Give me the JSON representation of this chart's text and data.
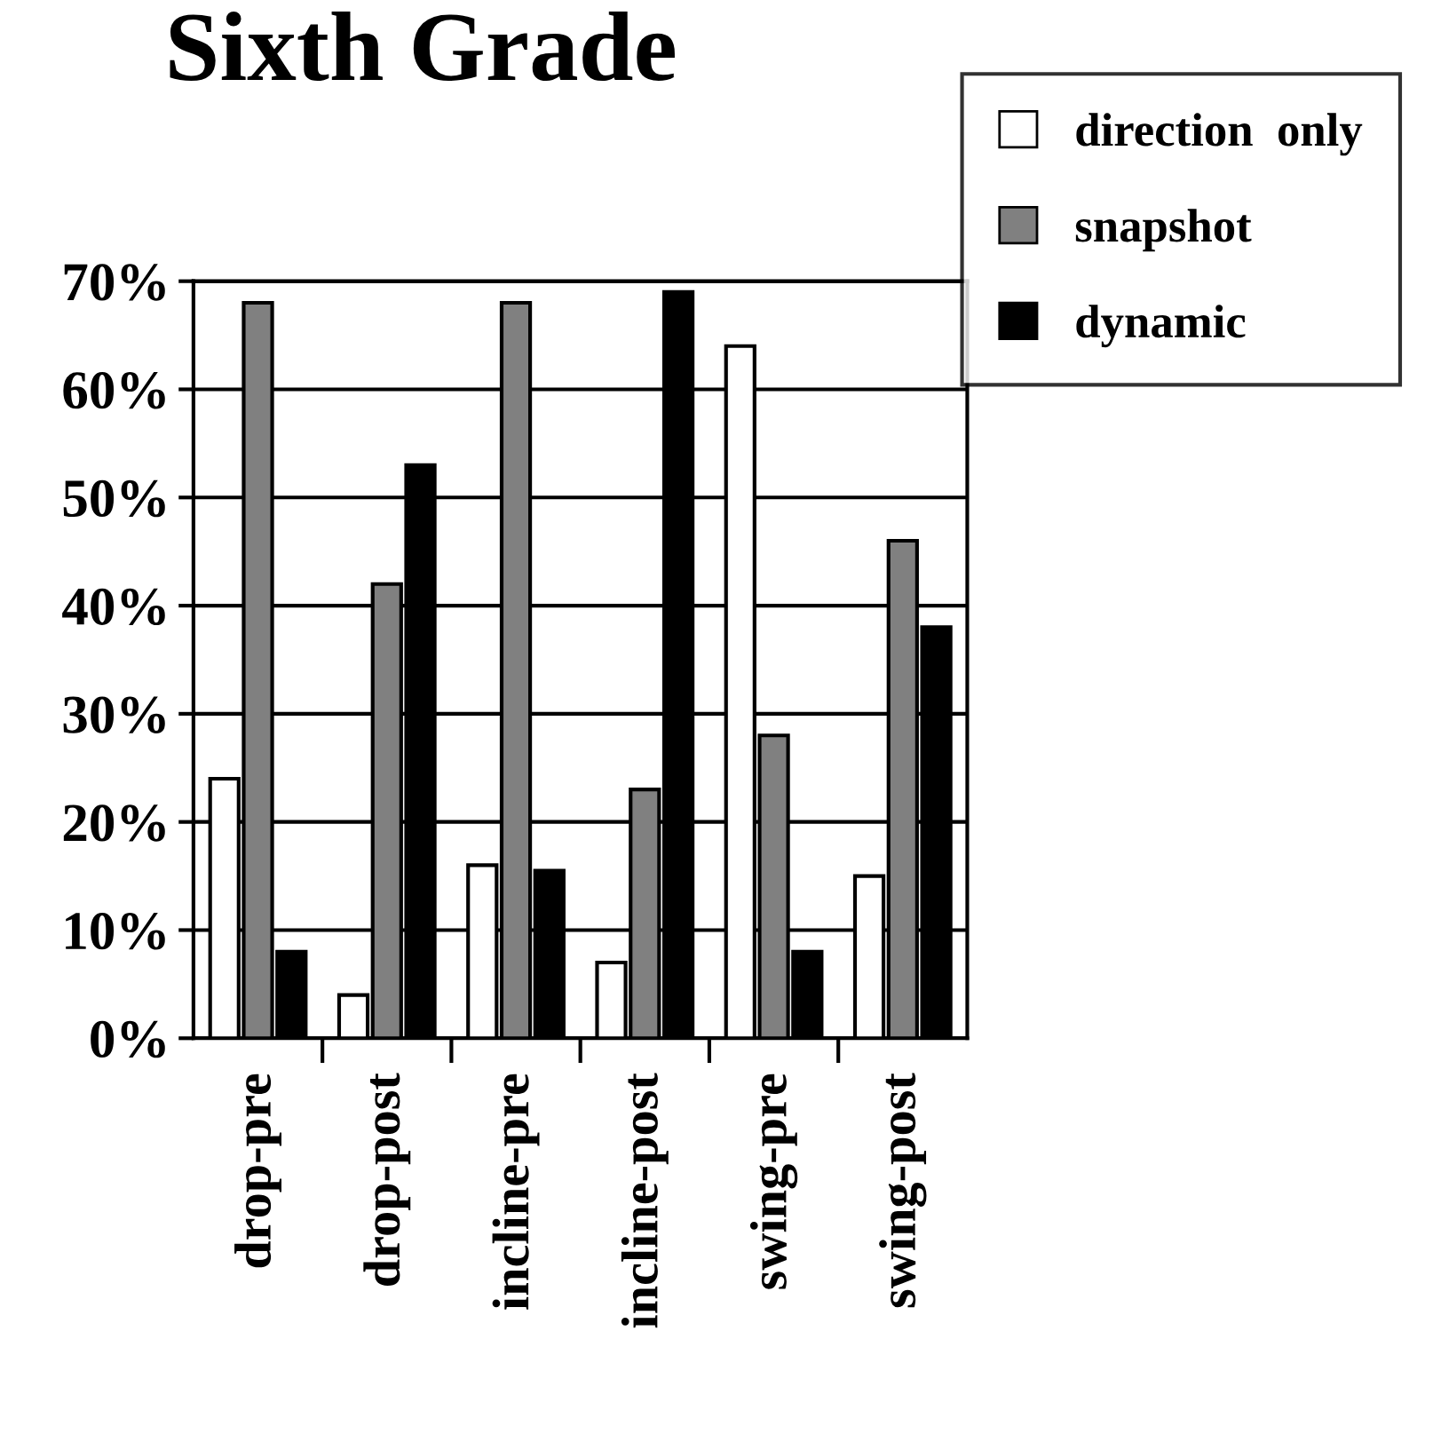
{
  "chart_data": {
    "type": "bar",
    "title": "Sixth Grade",
    "categories": [
      "drop-pre",
      "drop-post",
      "incline-pre",
      "incline-post",
      "swing-pre",
      "swing-post"
    ],
    "series": [
      {
        "name": "direction  only",
        "color": "#ffffff",
        "values": [
          24,
          4,
          16,
          7,
          64,
          15
        ]
      },
      {
        "name": "snapshot",
        "color": "#808080",
        "values": [
          68,
          42,
          68,
          23,
          28,
          46
        ]
      },
      {
        "name": "dynamic",
        "color": "#000000",
        "values": [
          8,
          53,
          15.5,
          69,
          8,
          38
        ]
      }
    ],
    "ylim": [
      0,
      70
    ],
    "yticks": [
      {
        "value": 0,
        "label": "0%"
      },
      {
        "value": 10,
        "label": "10%"
      },
      {
        "value": 20,
        "label": "20%"
      },
      {
        "value": 30,
        "label": "30%"
      },
      {
        "value": 40,
        "label": "40%"
      },
      {
        "value": 50,
        "label": "50%"
      },
      {
        "value": 60,
        "label": "60%"
      },
      {
        "value": 70,
        "label": "70%"
      }
    ],
    "grid": "y",
    "legend": "top right"
  }
}
